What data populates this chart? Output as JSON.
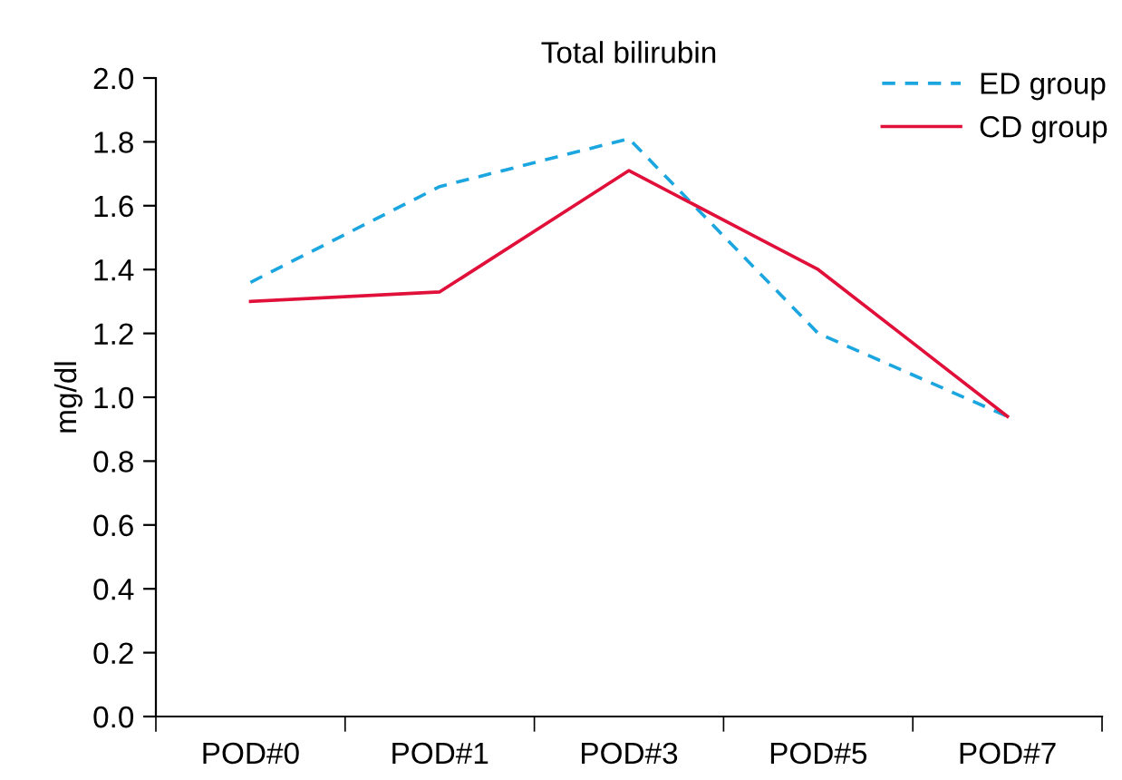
{
  "chart_data": {
    "type": "line",
    "title": "Total bilirubin",
    "ylabel": "mg/dl",
    "categories": [
      "POD#0",
      "POD#1",
      "POD#3",
      "POD#5",
      "POD#7"
    ],
    "series": [
      {
        "name": "ED group",
        "color": "#1ba6e0",
        "line_style": "dashed",
        "values": [
          1.36,
          1.66,
          1.81,
          1.2,
          0.94
        ]
      },
      {
        "name": "CD group",
        "color": "#e0103a",
        "line_style": "solid",
        "values": [
          1.3,
          1.33,
          1.71,
          1.4,
          0.94
        ]
      }
    ],
    "ylim": [
      0,
      2.0
    ],
    "yticks": [
      {
        "value": 0,
        "label": "0.0"
      },
      0.2,
      0.4,
      0.6,
      0.8,
      {
        "value": 1,
        "label": "1.0"
      },
      1.2,
      1.4,
      1.6,
      1.8,
      {
        "value": 2,
        "label": "2.0"
      }
    ],
    "grid": false,
    "legend": "top right",
    "marker": "none"
  }
}
